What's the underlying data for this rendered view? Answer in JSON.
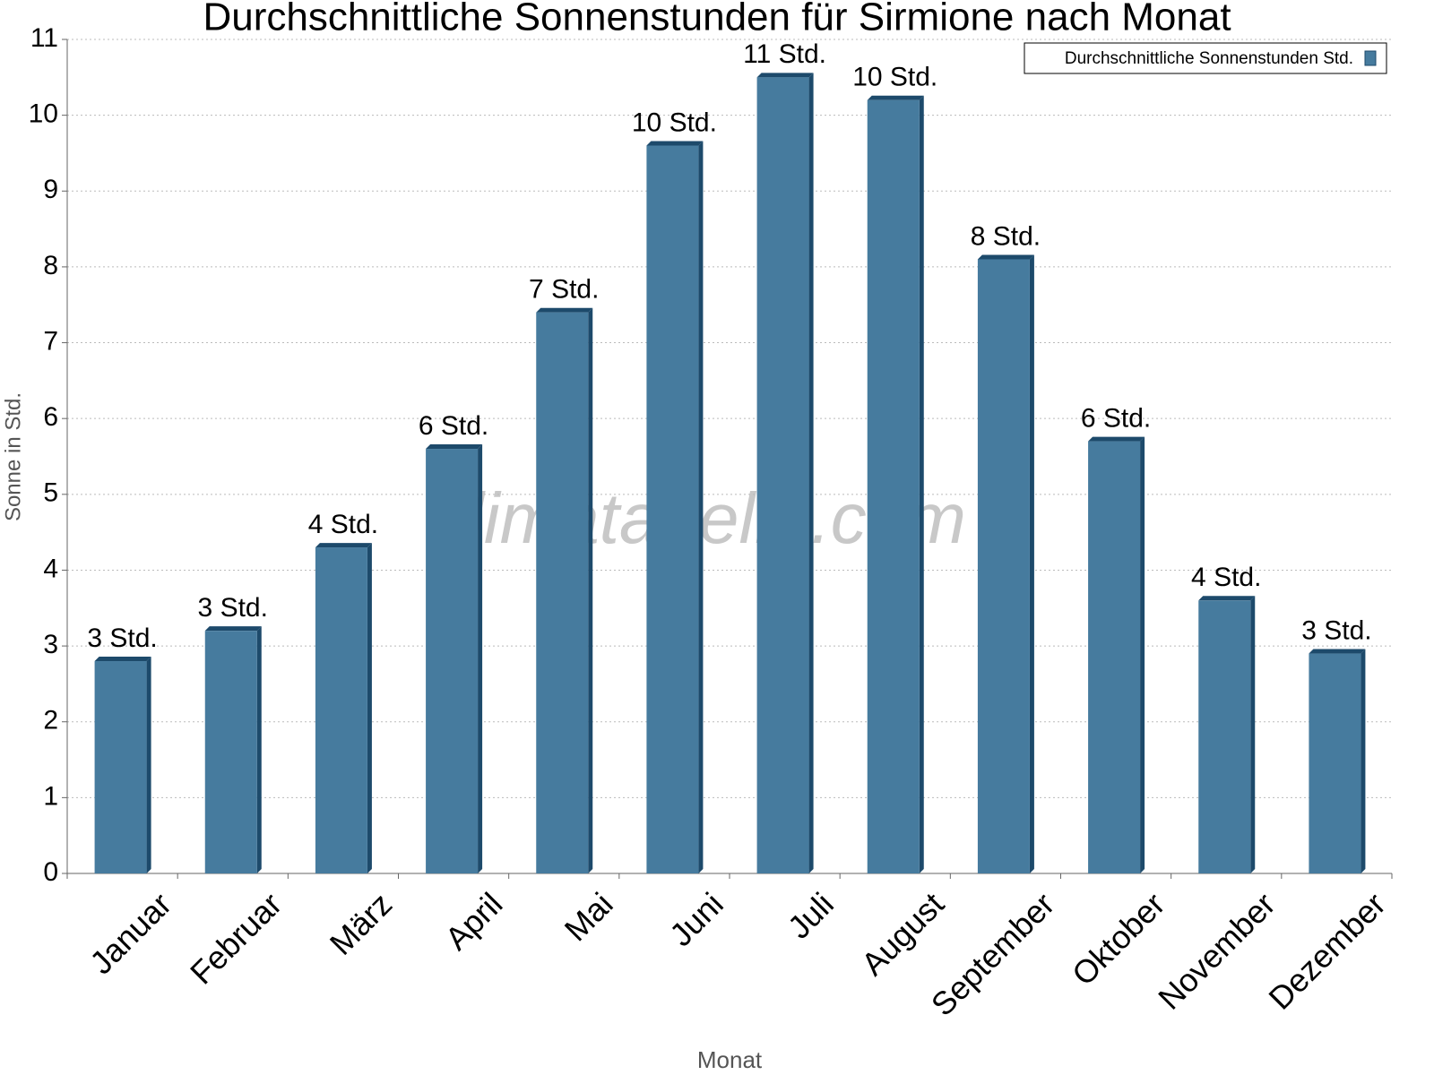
{
  "chart_data": {
    "type": "bar",
    "title": "Durchschnittliche Sonnenstunden für Sirmione nach Monat",
    "x_label": "Monat",
    "y_label": "Sonne in Std.",
    "watermark": "klimatabelle.com",
    "categories": [
      "Januar",
      "Februar",
      "März",
      "April",
      "Mai",
      "Juni",
      "Juli",
      "August",
      "September",
      "Oktober",
      "November",
      "Dezember"
    ],
    "series": [
      {
        "name": "Durchschnittliche Sonnenstunden Std.",
        "color": "#467b9e",
        "side_color": "#1d4a6b",
        "values": [
          2.8,
          3.2,
          4.3,
          5.6,
          7.4,
          9.6,
          10.5,
          10.2,
          8.1,
          5.7,
          3.6,
          2.9
        ],
        "value_labels": [
          "3 Std.",
          "3 Std.",
          "4 Std.",
          "6 Std.",
          "7 Std.",
          "10 Std.",
          "11 Std.",
          "10 Std.",
          "8 Std.",
          "6 Std.",
          "4 Std.",
          "3 Std."
        ]
      }
    ],
    "ylim": [
      0,
      11
    ],
    "yticks": [
      0,
      1,
      2,
      3,
      4,
      5,
      6,
      7,
      8,
      9,
      10,
      11
    ],
    "grid": true,
    "legend": "top-right"
  }
}
